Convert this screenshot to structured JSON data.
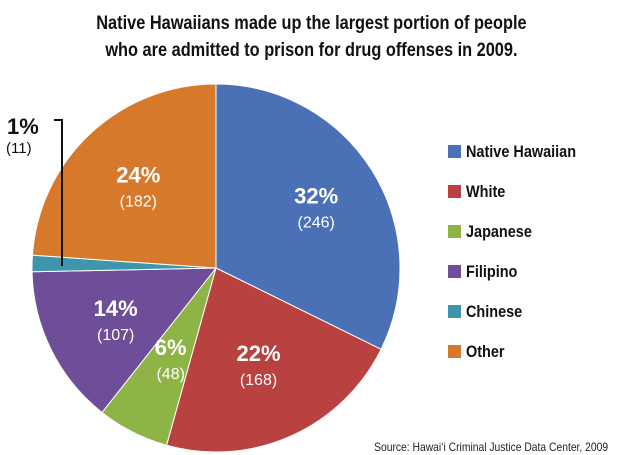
{
  "title_lines": [
    "Native Hawaiians made up the largest portion of people",
    "who are admitted to prison for drug offenses in 2009."
  ],
  "source": "Source: Hawai‘i Criminal Justice Data Center, 2009",
  "colors": {
    "Native Hawaiian": "#4a70b5",
    "White": "#b9413f",
    "Japanese": "#8fb446",
    "Filipino": "#6e4e98",
    "Chinese": "#3d96ad",
    "Other": "#d7792b"
  },
  "chart_data": {
    "type": "pie",
    "title": "Native Hawaiians made up the largest portion of people who are admitted to prison for drug offenses in 2009.",
    "legend_position": "right",
    "slices": [
      {
        "label": "Native Hawaiian",
        "percent_label": "32%",
        "count_label": "(246)",
        "value": 246
      },
      {
        "label": "White",
        "percent_label": "22%",
        "count_label": "(168)",
        "value": 168
      },
      {
        "label": "Japanese",
        "percent_label": "6%",
        "count_label": "(48)",
        "value": 48
      },
      {
        "label": "Filipino",
        "percent_label": "14%",
        "count_label": "(107)",
        "value": 107
      },
      {
        "label": "Chinese",
        "percent_label": "1%",
        "count_label": "(11)",
        "value": 11
      },
      {
        "label": "Other",
        "percent_label": "24%",
        "count_label": "(182)",
        "value": 182
      }
    ]
  }
}
